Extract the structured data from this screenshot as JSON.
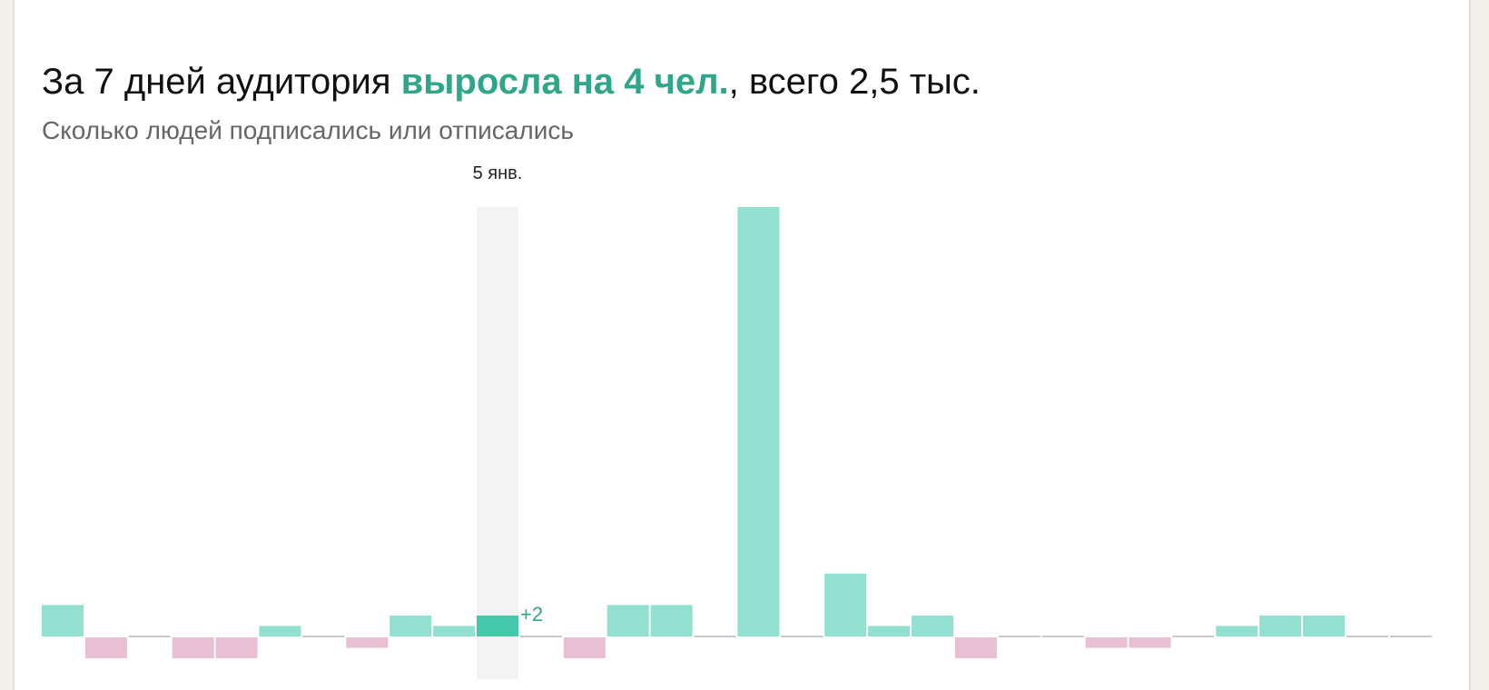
{
  "chart_data": {
    "type": "bar",
    "title_parts": [
      "За 7 дней аудитория ",
      "выросла на 4 чел.",
      ", всего 2,5 тыс."
    ],
    "subtitle": "Сколько людей подписались или отписались",
    "categories": [
      null,
      null,
      null,
      null,
      null,
      null,
      null,
      null,
      null,
      null,
      "5 янв.",
      null,
      null,
      null,
      null,
      null,
      null,
      null,
      null,
      null,
      null,
      null,
      null,
      null,
      null,
      null,
      null,
      null,
      null,
      null,
      null,
      null
    ],
    "values": [
      3,
      -2,
      0,
      -2,
      -2,
      1,
      0,
      -1,
      2,
      1,
      2,
      0,
      -2,
      3,
      3,
      0,
      41,
      0,
      6,
      1,
      2,
      -2,
      0,
      0,
      -1,
      -1,
      0,
      1,
      2,
      2,
      0,
      0
    ],
    "value_labels": [
      null,
      null,
      null,
      null,
      null,
      null,
      null,
      null,
      null,
      null,
      "+2",
      null,
      null,
      null,
      null,
      null,
      null,
      null,
      null,
      null,
      null,
      null,
      null,
      null,
      null,
      null,
      null,
      null,
      null,
      null,
      null,
      null
    ],
    "positive_color": "#91e0d0",
    "negative_color": "#e8bfd3",
    "highlight_color": "#45c9aa",
    "accent_color": "#2fa58a"
  }
}
